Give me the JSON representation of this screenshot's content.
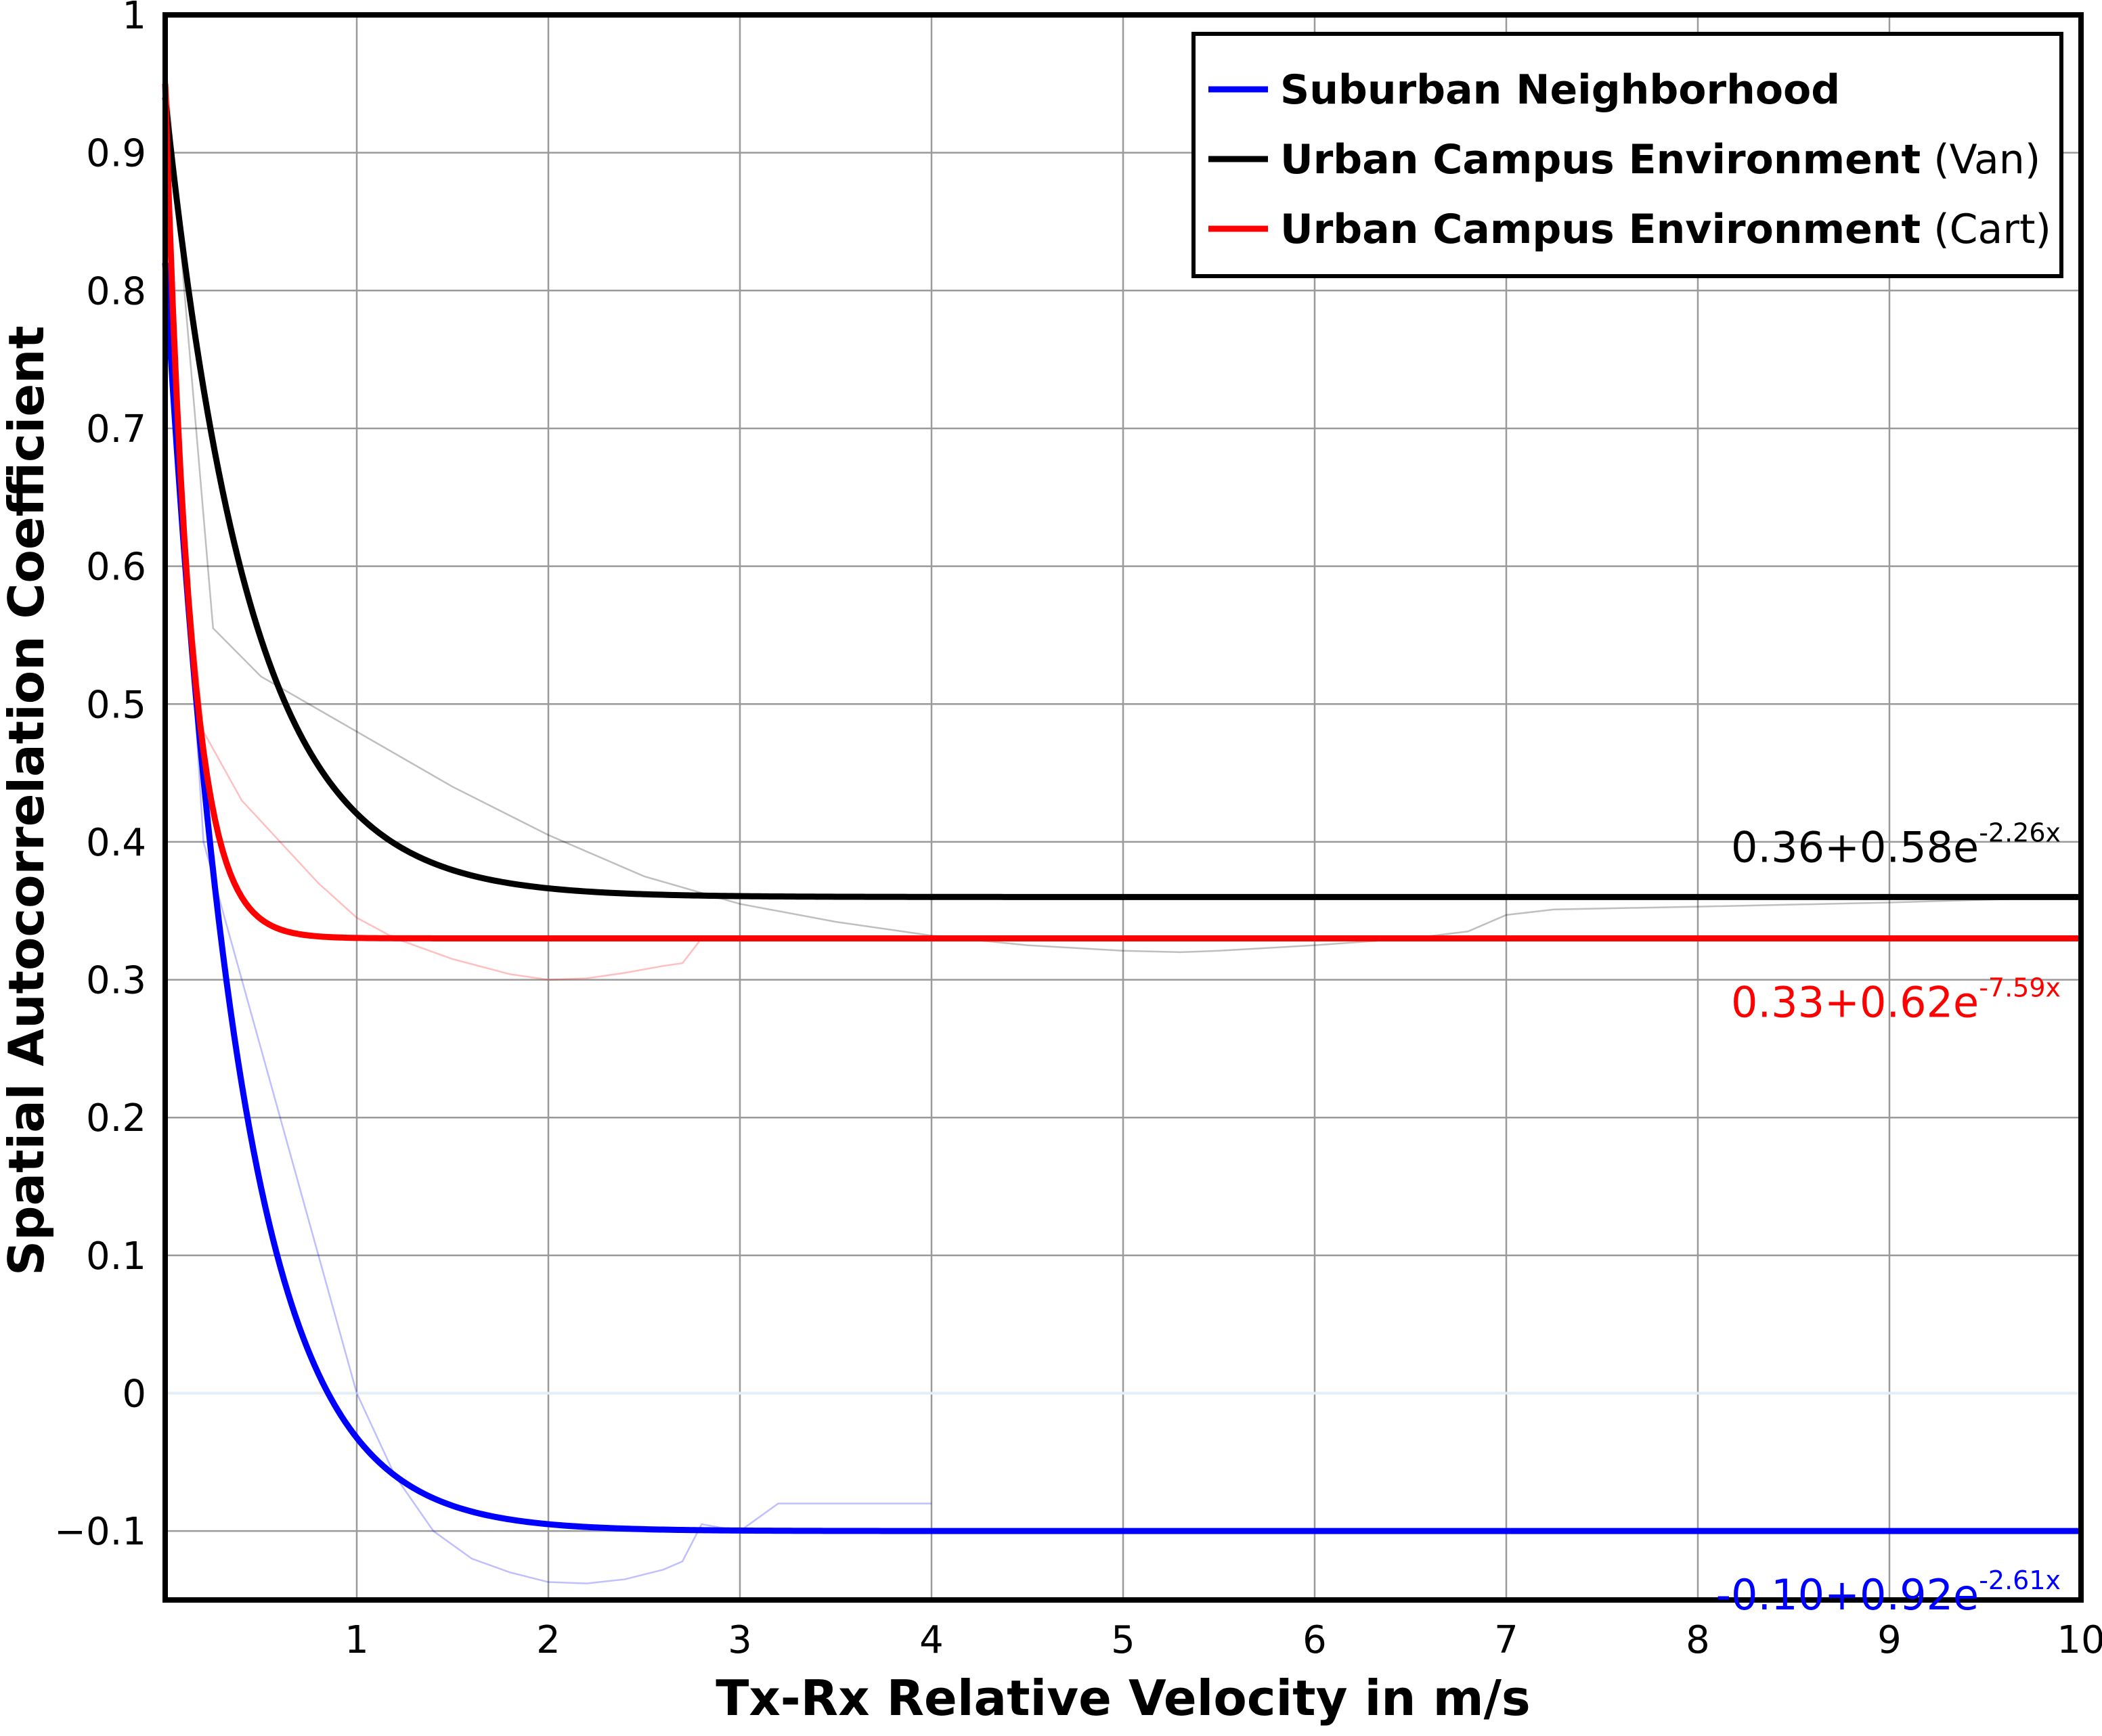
{
  "chart_data": {
    "type": "line",
    "title": "",
    "xlabel": "Tx-Rx Relative Velocity in m/s",
    "ylabel": "Spatial Autocorrelation Coefficient",
    "xlim": [
      0,
      10
    ],
    "ylim": [
      -0.15,
      1.0
    ],
    "x_ticks": [
      1,
      2,
      3,
      4,
      5,
      6,
      7,
      8,
      9,
      10
    ],
    "x_tick_labels": [
      "1",
      "2",
      "3",
      "4",
      "5",
      "6",
      "7",
      "8",
      "9",
      "10"
    ],
    "y_ticks": [
      -0.1,
      0,
      0.1,
      0.2,
      0.3,
      0.4,
      0.5,
      0.6,
      0.7,
      0.8,
      0.9,
      1.0
    ],
    "y_tick_labels": [
      "−0.1",
      "0",
      "0.1",
      "0.2",
      "0.3",
      "0.4",
      "0.5",
      "0.6",
      "0.7",
      "0.8",
      "0.9",
      "1"
    ],
    "grid": true,
    "legend_position": "top-right",
    "legend": [
      {
        "bold": "Suburban Neighborhood",
        "normal": "",
        "color": "#0000ff"
      },
      {
        "bold": "Urban Campus Environment",
        "normal": " (Van)",
        "color": "#000000"
      },
      {
        "bold": "Urban Campus Environment",
        "normal": " (Cart)",
        "color": "#ff0000"
      }
    ],
    "fits": [
      {
        "label_base": "-0.10+0.92e",
        "label_exp": "-2.61x",
        "color": "#0000ff",
        "a": -0.1,
        "b": 0.92,
        "c": 2.61
      },
      {
        "label_base": "0.36+0.58e",
        "label_exp": "-2.26x",
        "color": "#000000",
        "a": 0.36,
        "b": 0.58,
        "c": 2.26
      },
      {
        "label_base": "0.33+0.62e",
        "label_exp": "-7.59x",
        "color": "#ff0000",
        "a": 0.33,
        "b": 0.62,
        "c": 7.59
      }
    ],
    "measured": [
      {
        "color": "#0000ff",
        "x": [
          0,
          0.1,
          0.2,
          0.4,
          0.6,
          0.8,
          1.0,
          1.2,
          1.4,
          1.6,
          1.8,
          2.0,
          2.2,
          2.4,
          2.6,
          2.7,
          2.8,
          3.0,
          3.2,
          3.6,
          4.0
        ],
        "y": [
          0.92,
          0.62,
          0.4,
          0.3,
          0.2,
          0.1,
          0.0,
          -0.06,
          -0.1,
          -0.12,
          -0.13,
          -0.137,
          -0.138,
          -0.135,
          -0.128,
          -0.122,
          -0.095,
          -0.1,
          -0.08,
          -0.08,
          -0.08
        ]
      },
      {
        "color": "#000000",
        "x": [
          0,
          0.1,
          0.25,
          0.5,
          1.0,
          1.5,
          2.0,
          2.5,
          3.0,
          3.5,
          4.0,
          4.5,
          5.0,
          5.3,
          5.5,
          6.0,
          6.5,
          6.8,
          7.0,
          7.25,
          8.0,
          9.0,
          10.0
        ],
        "y": [
          0.97,
          0.8,
          0.555,
          0.52,
          0.48,
          0.44,
          0.405,
          0.375,
          0.355,
          0.342,
          0.332,
          0.325,
          0.321,
          0.32,
          0.321,
          0.325,
          0.33,
          0.335,
          0.347,
          0.351,
          0.353,
          0.356,
          0.36
        ]
      },
      {
        "color": "#ff0000",
        "x": [
          0,
          0.1,
          0.2,
          0.4,
          0.6,
          0.8,
          1.0,
          1.2,
          1.5,
          1.8,
          2.0,
          2.2,
          2.4,
          2.6,
          2.7,
          2.8
        ],
        "y": [
          0.95,
          0.62,
          0.48,
          0.43,
          0.4,
          0.37,
          0.345,
          0.33,
          0.315,
          0.304,
          0.3,
          0.301,
          0.305,
          0.31,
          0.312,
          0.33
        ]
      }
    ]
  }
}
